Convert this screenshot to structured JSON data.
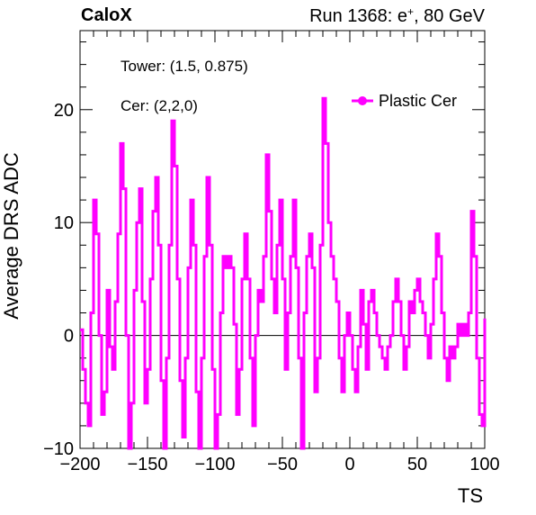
{
  "header": {
    "experiment": "CaloX",
    "run_prefix": "Run 1368: e",
    "run_superscript": "+",
    "run_suffix": ", 80 GeV"
  },
  "chart_data": {
    "type": "line",
    "xlabel": "TS",
    "ylabel": "Average DRS ADC",
    "xlim": [
      -200,
      100
    ],
    "ylim": [
      -10,
      27
    ],
    "x_ticks": [
      -200,
      -150,
      -100,
      -50,
      0,
      50,
      100
    ],
    "x_tick_labels": [
      "−200",
      "−150",
      "−100",
      "−50",
      "0",
      "50",
      "100"
    ],
    "y_ticks": [
      -10,
      0,
      10,
      20
    ],
    "y_tick_labels": [
      "−10",
      "0",
      "10",
      "20"
    ],
    "grid": false,
    "zero_line": true,
    "legend_placement": "top-right",
    "annotations": [
      "Tower: (1.5, 0.875)",
      "Cer: (2,2,0)"
    ],
    "series": [
      {
        "name": "Plastic Cer",
        "color": "#ff00ff",
        "step": true,
        "points": [
          [
            -200,
            0.5
          ],
          [
            -198,
            -3
          ],
          [
            -196,
            -6
          ],
          [
            -194,
            -8
          ],
          [
            -192,
            2
          ],
          [
            -190,
            12
          ],
          [
            -188,
            9
          ],
          [
            -186,
            0
          ],
          [
            -184,
            -7
          ],
          [
            -182,
            -5
          ],
          [
            -180,
            4
          ],
          [
            -178,
            -1
          ],
          [
            -176,
            -3
          ],
          [
            -174,
            3
          ],
          [
            -172,
            9
          ],
          [
            -170,
            17
          ],
          [
            -168,
            13
          ],
          [
            -166,
            0
          ],
          [
            -164,
            -10
          ],
          [
            -162,
            -6
          ],
          [
            -160,
            4
          ],
          [
            -158,
            10
          ],
          [
            -156,
            13
          ],
          [
            -154,
            3
          ],
          [
            -152,
            -6
          ],
          [
            -150,
            -3
          ],
          [
            -148,
            5
          ],
          [
            -146,
            11
          ],
          [
            -144,
            14
          ],
          [
            -142,
            8
          ],
          [
            -140,
            -4
          ],
          [
            -138,
            -10
          ],
          [
            -136,
            -2
          ],
          [
            -134,
            8
          ],
          [
            -132,
            19
          ],
          [
            -130,
            15
          ],
          [
            -128,
            5
          ],
          [
            -126,
            -4
          ],
          [
            -124,
            -9
          ],
          [
            -122,
            -2
          ],
          [
            -120,
            6
          ],
          [
            -118,
            12
          ],
          [
            -116,
            8
          ],
          [
            -114,
            -5
          ],
          [
            -112,
            -10
          ],
          [
            -110,
            -2
          ],
          [
            -108,
            7
          ],
          [
            -106,
            14
          ],
          [
            -104,
            8
          ],
          [
            -102,
            -3
          ],
          [
            -100,
            -10
          ],
          [
            -98,
            -7
          ],
          [
            -96,
            2
          ],
          [
            -94,
            7
          ],
          [
            -92,
            6
          ],
          [
            -90,
            7
          ],
          [
            -88,
            6
          ],
          [
            -86,
            1
          ],
          [
            -84,
            -7
          ],
          [
            -82,
            -3
          ],
          [
            -80,
            5
          ],
          [
            -78,
            9
          ],
          [
            -76,
            5
          ],
          [
            -74,
            -2
          ],
          [
            -72,
            -8
          ],
          [
            -70,
            0
          ],
          [
            -68,
            4
          ],
          [
            -66,
            3
          ],
          [
            -64,
            7
          ],
          [
            -62,
            16
          ],
          [
            -60,
            11
          ],
          [
            -58,
            5
          ],
          [
            -56,
            2
          ],
          [
            -54,
            8
          ],
          [
            -52,
            12
          ],
          [
            -50,
            5
          ],
          [
            -48,
            -3
          ],
          [
            -46,
            2
          ],
          [
            -44,
            7
          ],
          [
            -42,
            12
          ],
          [
            -40,
            6
          ],
          [
            -38,
            -2
          ],
          [
            -36,
            -10
          ],
          [
            -34,
            2
          ],
          [
            -32,
            7
          ],
          [
            -30,
            9
          ],
          [
            -28,
            6
          ],
          [
            -26,
            -5
          ],
          [
            -24,
            -2
          ],
          [
            -22,
            8
          ],
          [
            -20,
            21
          ],
          [
            -18,
            17
          ],
          [
            -16,
            10
          ],
          [
            -14,
            7
          ],
          [
            -12,
            5
          ],
          [
            -10,
            3
          ],
          [
            -8,
            -2
          ],
          [
            -6,
            -5
          ],
          [
            -4,
            0
          ],
          [
            -2,
            2
          ],
          [
            0,
            0
          ],
          [
            2,
            -3
          ],
          [
            4,
            -5
          ],
          [
            6,
            -1
          ],
          [
            8,
            4
          ],
          [
            10,
            1
          ],
          [
            12,
            -3
          ],
          [
            14,
            3
          ],
          [
            16,
            4
          ],
          [
            18,
            2
          ],
          [
            20,
            0
          ],
          [
            22,
            -1
          ],
          [
            24,
            -2
          ],
          [
            26,
            -3
          ],
          [
            28,
            -1
          ],
          [
            30,
            0
          ],
          [
            32,
            3
          ],
          [
            34,
            5
          ],
          [
            36,
            3
          ],
          [
            38,
            0
          ],
          [
            40,
            -3
          ],
          [
            42,
            -1
          ],
          [
            44,
            3
          ],
          [
            46,
            2
          ],
          [
            48,
            4
          ],
          [
            50,
            5
          ],
          [
            52,
            3
          ],
          [
            54,
            2
          ],
          [
            56,
            0
          ],
          [
            58,
            -2
          ],
          [
            60,
            1
          ],
          [
            62,
            5
          ],
          [
            64,
            9
          ],
          [
            66,
            7
          ],
          [
            68,
            2
          ],
          [
            70,
            -2
          ],
          [
            72,
            -4
          ],
          [
            74,
            -1
          ],
          [
            76,
            -2
          ],
          [
            78,
            -1
          ],
          [
            80,
            1
          ],
          [
            82,
            0
          ],
          [
            84,
            1
          ],
          [
            86,
            0
          ],
          [
            88,
            2
          ],
          [
            90,
            11
          ],
          [
            92,
            7
          ],
          [
            94,
            -2
          ],
          [
            96,
            -7
          ],
          [
            98,
            -8
          ],
          [
            100,
            1.5
          ]
        ]
      }
    ]
  }
}
